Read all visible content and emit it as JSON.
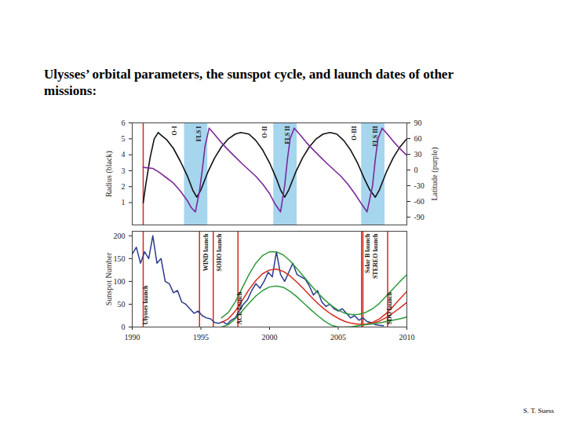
{
  "title": "Ulysses’ orbital parameters, the sunspot cycle, and launch dates of other missions:",
  "credit": "S. T. Suess",
  "chart_data": [
    {
      "type": "line",
      "ylabel": "Radius (black)",
      "y2label": "Latitude (purple)",
      "xlim": [
        1990,
        2010
      ],
      "ylim": [
        -0.4,
        6
      ],
      "yticks": [
        1,
        2,
        3,
        4,
        5,
        6
      ],
      "y2lim": [
        -105,
        90
      ],
      "y2ticks": [
        90,
        60,
        30,
        0,
        -30,
        -60,
        -90
      ],
      "series": [
        {
          "color": "#111111",
          "x": [
            1990.8,
            1991.0,
            1991.3,
            1991.6,
            1991.9,
            1992.0,
            1992.5,
            1993.0,
            1993.5,
            1994.0,
            1994.4,
            1994.7,
            1995.0,
            1995.5,
            1996.0,
            1996.5,
            1997.0,
            1997.5,
            1997.9,
            1998.5,
            1999.0,
            1999.5,
            2000.0,
            2000.5,
            2000.8,
            2001.1,
            2001.4,
            2001.9,
            2002.4,
            2002.9,
            2003.4,
            2003.9,
            2004.4,
            2004.9,
            2005.4,
            2005.9,
            2006.4,
            2006.9,
            2007.3,
            2007.7,
            2008.0,
            2008.5,
            2009.0,
            2009.5,
            2010.0
          ],
          "values": [
            1.0,
            2.2,
            3.8,
            5.0,
            5.4,
            5.3,
            4.95,
            4.4,
            3.6,
            2.7,
            1.8,
            1.34,
            1.8,
            2.9,
            3.8,
            4.5,
            5.0,
            5.3,
            5.4,
            5.3,
            4.9,
            4.3,
            3.5,
            2.5,
            1.8,
            1.34,
            1.8,
            2.9,
            3.8,
            4.5,
            5.0,
            5.3,
            5.4,
            5.3,
            4.9,
            4.3,
            3.5,
            2.5,
            1.8,
            1.34,
            1.8,
            2.9,
            3.8,
            4.5,
            5.0
          ]
        },
        {
          "color": "#7a2a9a",
          "axis": "y2",
          "x": [
            1990.8,
            1991.5,
            1992.0,
            1992.5,
            1993.0,
            1993.5,
            1994.0,
            1994.3,
            1994.6,
            1994.9,
            1995.1,
            1995.3,
            1995.6,
            1996.0,
            1996.5,
            1997.0,
            1997.5,
            1998.0,
            1998.5,
            1999.0,
            1999.5,
            2000.0,
            2000.4,
            2000.8,
            2001.1,
            2001.3,
            2001.5,
            2001.8,
            2002.2,
            2002.7,
            2003.2,
            2003.7,
            2004.2,
            2004.7,
            2005.2,
            2005.7,
            2006.2,
            2006.7,
            2007.1,
            2007.5,
            2007.7,
            2007.9,
            2008.2,
            2008.6,
            2009.1,
            2009.6,
            2010.0
          ],
          "values": [
            5,
            3,
            -5,
            -15,
            -25,
            -40,
            -58,
            -72,
            -80,
            -40,
            0,
            45,
            80,
            68,
            52,
            38,
            25,
            12,
            0,
            -12,
            -27,
            -45,
            -65,
            -80,
            -30,
            20,
            60,
            80,
            68,
            52,
            38,
            25,
            12,
            0,
            -12,
            -27,
            -45,
            -65,
            -80,
            -30,
            20,
            60,
            80,
            68,
            52,
            38,
            28
          ]
        }
      ],
      "bands": [
        {
          "label": "FLS I",
          "x1": 1993.8,
          "x2": 1995.5,
          "color": "#a6d5ee"
        },
        {
          "label": "FLS II",
          "x1": 2000.3,
          "x2": 2002.0,
          "color": "#a6d5ee"
        },
        {
          "label": "FLS III",
          "x1": 2006.7,
          "x2": 2008.4,
          "color": "#a6d5ee"
        }
      ],
      "annotations": [
        {
          "text": "O-I",
          "x": 1992.9
        },
        {
          "text": "O-II",
          "x": 1999.5
        },
        {
          "text": "O-III",
          "x": 2006.0
        }
      ],
      "launches": [
        {
          "x": 1990.8,
          "color": "#d42a1e"
        }
      ]
    },
    {
      "type": "line",
      "ylabel": "Sunspot Number",
      "xlim": [
        1990,
        2010
      ],
      "xticks": [
        1990,
        1995,
        2000,
        2005,
        2010
      ],
      "ylim": [
        0,
        210
      ],
      "yticks": [
        0,
        50,
        100,
        150,
        200
      ],
      "series": [
        {
          "color": "#2a3a8c",
          "x": [
            1990.0,
            1990.3,
            1990.6,
            1990.9,
            1991.2,
            1991.5,
            1991.8,
            1992.1,
            1992.4,
            1992.7,
            1993.0,
            1993.3,
            1993.6,
            1993.9,
            1994.2,
            1994.5,
            1994.8,
            1995.1,
            1995.4,
            1995.7,
            1996.0,
            1996.3,
            1996.6,
            1996.9,
            1997.2,
            1997.5,
            1997.8,
            1998.1,
            1998.4,
            1998.7,
            1999.0,
            1999.3,
            1999.6,
            1999.9,
            2000.2,
            2000.5,
            2000.8,
            2001.1,
            2001.4,
            2001.7,
            2002.0,
            2002.3,
            2002.6,
            2002.9,
            2003.2,
            2003.5,
            2003.8,
            2004.1,
            2004.4,
            2004.7,
            2005.0,
            2005.3,
            2005.6,
            2005.9,
            2006.2,
            2006.5,
            2006.8,
            2007.1,
            2007.4,
            2007.7,
            2008.0,
            2008.3
          ],
          "values": [
            160,
            175,
            140,
            165,
            150,
            200,
            140,
            150,
            100,
            95,
            75,
            80,
            55,
            50,
            40,
            30,
            35,
            25,
            20,
            18,
            10,
            8,
            12,
            6,
            15,
            20,
            35,
            50,
            60,
            80,
            95,
            85,
            100,
            120,
            110,
            165,
            115,
            100,
            120,
            140,
            115,
            110,
            105,
            90,
            70,
            80,
            55,
            45,
            50,
            40,
            35,
            40,
            30,
            20,
            25,
            15,
            20,
            12,
            10,
            5,
            4,
            3
          ]
        },
        {
          "color": "#d42a1e",
          "x": [
            1996.5,
            1997.0,
            1997.5,
            1998.0,
            1998.5,
            1999.0,
            1999.5,
            2000.0,
            2000.5,
            2001.0,
            2001.5,
            2002.0,
            2002.5,
            2003.0,
            2003.5,
            2004.0,
            2004.5,
            2005.0,
            2005.5,
            2006.0,
            2006.5,
            2007.0,
            2007.5,
            2008.0,
            2008.5,
            2009.0,
            2009.5,
            2010.0
          ],
          "values": [
            10,
            18,
            35,
            58,
            82,
            102,
            117,
            125,
            127,
            122,
            112,
            98,
            83,
            67,
            52,
            39,
            28,
            19,
            12,
            8,
            6,
            6,
            10,
            18,
            30,
            45,
            62,
            78
          ]
        },
        {
          "color": "#d42a1e",
          "x": [
            2007.0,
            2007.5,
            2008.0,
            2008.5,
            2009.0,
            2009.5,
            2010.0
          ],
          "values": [
            6,
            8,
            13,
            21,
            31,
            42,
            54
          ]
        },
        {
          "color": "#2e9a3a",
          "x": [
            1996.5,
            1997.0,
            1997.5,
            1998.0,
            1998.5,
            1999.0,
            1999.5,
            2000.0,
            2000.5,
            2001.0,
            2001.5,
            2002.0,
            2002.5,
            2003.0,
            2003.5,
            2004.0,
            2004.5,
            2005.0,
            2005.5,
            2006.0,
            2006.5,
            2007.0,
            2007.5,
            2008.0,
            2008.5,
            2009.0,
            2009.5,
            2010.0
          ],
          "values": [
            20,
            32,
            55,
            85,
            115,
            140,
            157,
            165,
            165,
            158,
            145,
            128,
            110,
            92,
            75,
            60,
            47,
            37,
            30,
            27,
            28,
            32,
            40,
            52,
            68,
            84,
            100,
            115
          ]
        },
        {
          "color": "#2e9a3a",
          "x": [
            1996.5,
            1997.0,
            1997.5,
            1998.0,
            1998.5,
            1999.0,
            1999.5,
            2000.0,
            2000.5,
            2001.0,
            2001.5,
            2002.0,
            2002.5,
            2003.0,
            2003.5,
            2004.0,
            2004.5,
            2005.0,
            2005.5,
            2006.0,
            2006.5,
            2007.0,
            2007.5,
            2008.0,
            2008.5,
            2009.0,
            2009.5,
            2010.0
          ],
          "values": [
            0,
            5,
            18,
            35,
            52,
            68,
            80,
            88,
            90,
            87,
            78,
            66,
            52,
            38,
            25,
            13,
            4,
            0,
            0,
            1,
            3,
            5,
            7,
            9,
            12,
            15,
            18,
            22
          ]
        }
      ],
      "launches": [
        {
          "label": "Ulysses launch",
          "x": 1990.8,
          "color": "#d42a1e"
        },
        {
          "label": "WIND launch",
          "x": 1994.9,
          "color": "#d42a1e"
        },
        {
          "label": "SOHO launch",
          "x": 1995.9,
          "color": "#d42a1e"
        },
        {
          "label": "ACE launch",
          "x": 1997.7,
          "color": "#d42a1e"
        },
        {
          "label": "Solar B launch",
          "x": 2006.7,
          "color": "#d42a1e"
        },
        {
          "label": "STEREO launch",
          "x": 2006.8,
          "color": "#d42a1e"
        },
        {
          "label": "SDO launch",
          "x": 2008.6,
          "color": "#d42a1e"
        }
      ]
    }
  ]
}
